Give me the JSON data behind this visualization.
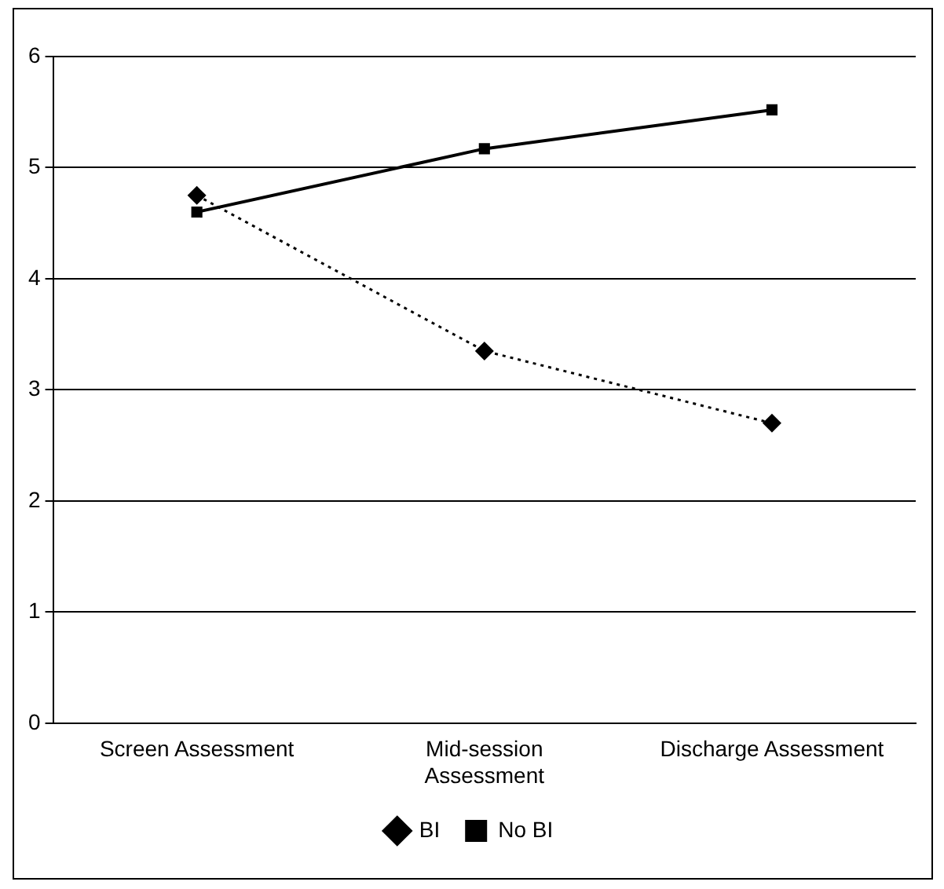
{
  "chart_data": {
    "type": "line",
    "categories": [
      "Screen Assessment",
      "Mid-session Assessment",
      "Discharge Assessment"
    ],
    "series": [
      {
        "name": "BI",
        "color": "#000000",
        "values": [
          4.75,
          3.35,
          2.7
        ],
        "marker": "diamond",
        "line_style": "dotted"
      },
      {
        "name": "No BI",
        "color": "#000000",
        "values": [
          4.6,
          5.17,
          5.52
        ],
        "marker": "square",
        "line_style": "solid"
      }
    ],
    "ylim": [
      0,
      6
    ],
    "yticks": [
      0,
      1,
      2,
      3,
      4,
      5,
      6
    ],
    "grid": "y",
    "legend": "bottom"
  }
}
